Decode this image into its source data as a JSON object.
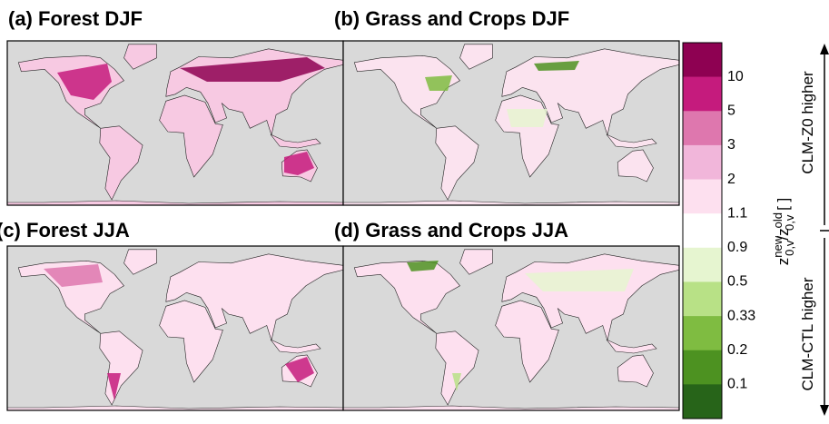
{
  "panels": [
    {
      "title": "(a)  Forest DJF"
    },
    {
      "title": "(b)  Grass and Crops DJF"
    },
    {
      "title": "(c) Forest JJA"
    },
    {
      "title": "(d) Grass and Crops JJA"
    }
  ],
  "colorbar": {
    "colors": [
      "#8e0152",
      "#c51b7d",
      "#de77ae",
      "#f1b6da",
      "#fde0ef",
      "#ffffff",
      "#e6f5d0",
      "#b8e186",
      "#7fbc41",
      "#4d9221",
      "#276419"
    ],
    "ticks": [
      10,
      5,
      3,
      2,
      1.1,
      0.9,
      0.5,
      0.33,
      0.2,
      0.1
    ],
    "label": {
      "base": "z",
      "sup1": "new",
      "sub1": "0,v",
      "mid": "/z",
      "sup2": "old",
      "sub2": "0,v",
      "unit": " [ ]"
    }
  },
  "annotations": {
    "upper": "CLM-Z0 higher",
    "lower": "CLM-CTL higher"
  }
}
